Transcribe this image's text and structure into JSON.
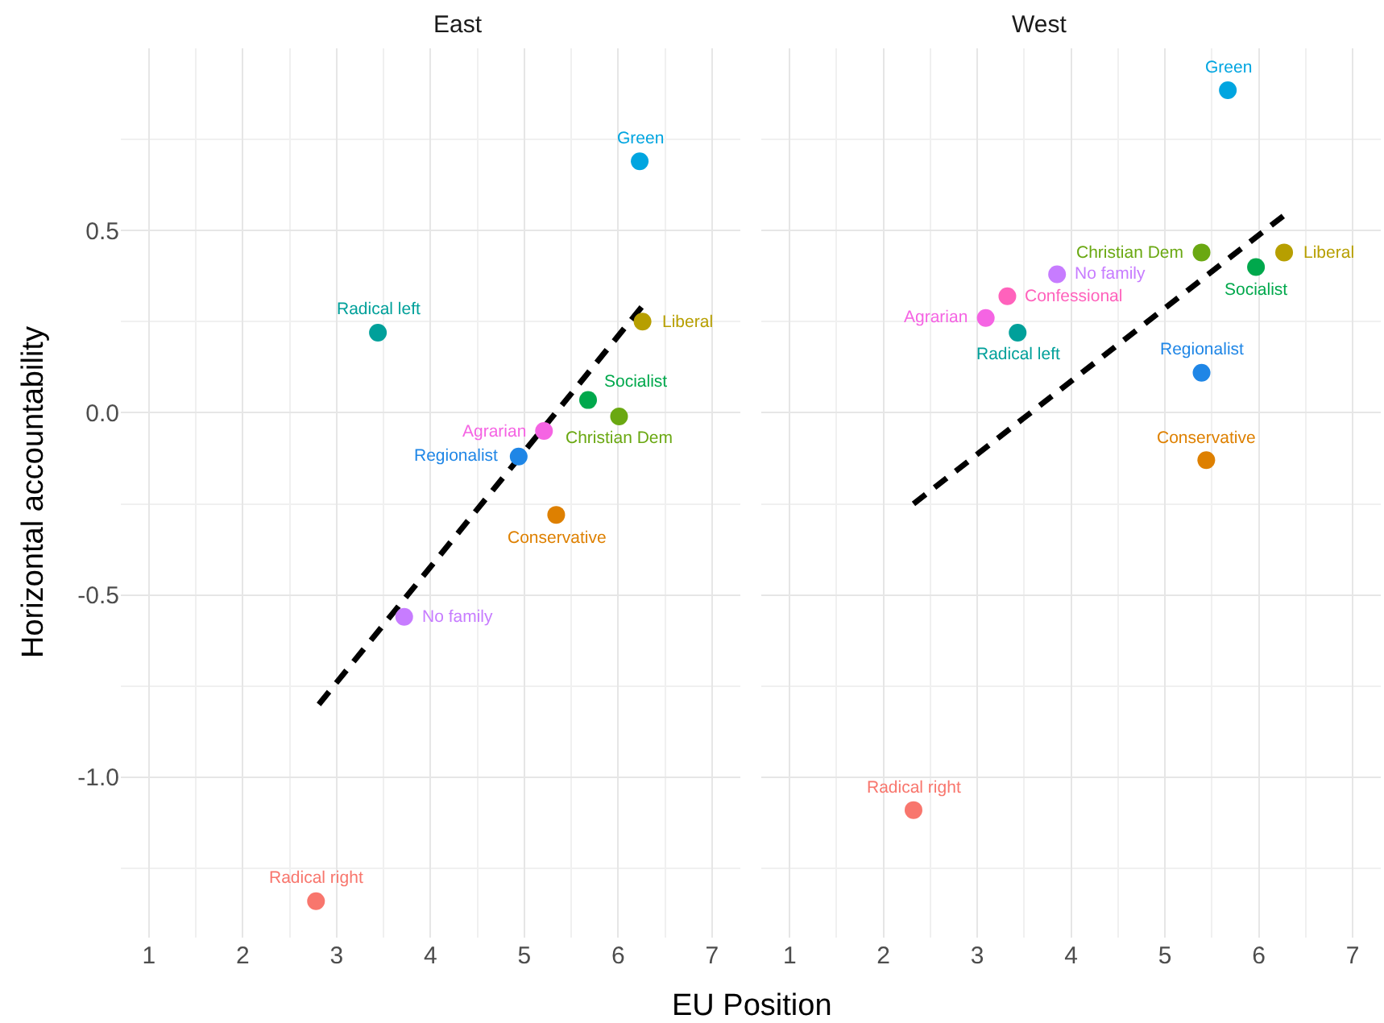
{
  "chart_data": [
    {
      "type": "scatter",
      "title": "East",
      "xlabel": "EU Position",
      "ylabel": "Horizontal accountability",
      "xlim": [
        0.7,
        7.3
      ],
      "ylim": [
        -1.44,
        1.0
      ],
      "xticks": [
        1,
        2,
        3,
        4,
        5,
        6,
        7
      ],
      "yticks": [
        {
          "value": -1.0,
          "label": "-1.0"
        },
        {
          "value": -0.5,
          "label": "-0.5"
        },
        {
          "value": 0.0,
          "label": "0.0"
        },
        {
          "value": 0.5,
          "label": "0.5"
        }
      ],
      "grid": true,
      "legend": false,
      "marker": "circle",
      "series": [
        {
          "name": "Green",
          "color": "#00a5e0",
          "x": [
            6.23
          ],
          "values": [
            0.69
          ]
        },
        {
          "name": "Liberal",
          "color": "#b79f00",
          "x": [
            6.26
          ],
          "values": [
            0.25
          ]
        },
        {
          "name": "Radical left",
          "color": "#00a09a",
          "x": [
            3.44
          ],
          "values": [
            0.22
          ]
        },
        {
          "name": "Socialist",
          "color": "#00a84c",
          "x": [
            5.68
          ],
          "values": [
            0.035
          ]
        },
        {
          "name": "Christian Dem",
          "color": "#6aa812",
          "x": [
            6.01
          ],
          "values": [
            -0.01
          ]
        },
        {
          "name": "Agrarian",
          "color": "#f564e3",
          "x": [
            5.21
          ],
          "values": [
            -0.05
          ]
        },
        {
          "name": "Regionalist",
          "color": "#1f86e6",
          "x": [
            4.94
          ],
          "values": [
            -0.12
          ]
        },
        {
          "name": "Conservative",
          "color": "#de8000",
          "x": [
            5.34
          ],
          "values": [
            -0.28
          ]
        },
        {
          "name": "No family",
          "color": "#c77cff",
          "x": [
            3.72
          ],
          "values": [
            -0.56
          ]
        },
        {
          "name": "Radical right",
          "color": "#f8766d",
          "x": [
            2.78
          ],
          "values": [
            -1.34
          ]
        },
        {
          "type": "line",
          "color": "#000000",
          "line_style": "dashed",
          "marker": "none",
          "x": [
            2.81,
            6.25
          ],
          "values": [
            -0.8,
            0.29
          ]
        }
      ]
    },
    {
      "type": "scatter",
      "title": "West",
      "xlim": [
        0.7,
        7.3
      ],
      "ylim": [
        -1.44,
        1.0
      ],
      "xticks": [
        1,
        2,
        3,
        4,
        5,
        6,
        7
      ],
      "yticks": [
        {
          "value": -1.0,
          "label": null
        },
        {
          "value": -0.5,
          "label": null
        },
        {
          "value": 0.0,
          "label": null
        },
        {
          "value": 0.5,
          "label": null
        }
      ],
      "tick_labels": "x",
      "grid": true,
      "legend": false,
      "marker": "circle",
      "series": [
        {
          "name": "Green",
          "color": "#00a5e0",
          "x": [
            5.67
          ],
          "values": [
            0.885
          ]
        },
        {
          "name": "Christian Dem",
          "color": "#6aa812",
          "x": [
            5.39
          ],
          "values": [
            0.44
          ]
        },
        {
          "name": "Liberal",
          "color": "#b79f00",
          "x": [
            6.27
          ],
          "values": [
            0.44
          ]
        },
        {
          "name": "Socialist",
          "color": "#00a84c",
          "x": [
            5.97
          ],
          "values": [
            0.4
          ]
        },
        {
          "name": "No family",
          "color": "#c77cff",
          "x": [
            3.85
          ],
          "values": [
            0.38
          ]
        },
        {
          "name": "Confessional",
          "color": "#ff62bc",
          "x": [
            3.32
          ],
          "values": [
            0.32
          ]
        },
        {
          "name": "Agrarian",
          "color": "#f564e3",
          "x": [
            3.09
          ],
          "values": [
            0.26
          ]
        },
        {
          "name": "Radical left",
          "color": "#00a09a",
          "x": [
            3.43
          ],
          "values": [
            0.22
          ]
        },
        {
          "name": "Regionalist",
          "color": "#1f86e6",
          "x": [
            5.39
          ],
          "values": [
            0.11
          ]
        },
        {
          "name": "Conservative",
          "color": "#de8000",
          "x": [
            5.44
          ],
          "values": [
            -0.13
          ]
        },
        {
          "name": "Radical right",
          "color": "#f8766d",
          "x": [
            2.32
          ],
          "values": [
            -1.09
          ]
        },
        {
          "type": "line",
          "color": "#000000",
          "line_style": "dashed",
          "marker": "none",
          "x": [
            2.32,
            6.26
          ],
          "values": [
            -0.25,
            0.54
          ]
        }
      ]
    }
  ]
}
